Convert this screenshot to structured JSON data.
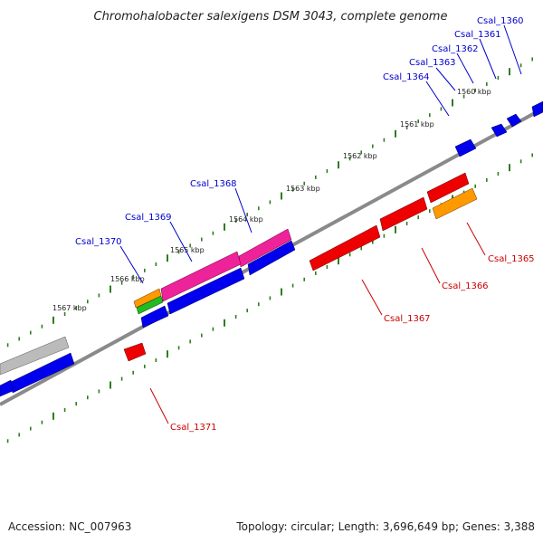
{
  "title": "Chromohalobacter salexigens DSM 3043, complete genome",
  "footer": {
    "accession": "Accession: NC_007963",
    "summary": "Topology: circular; Length: 3,696,649 bp; Genes: 3,388"
  },
  "colors": {
    "backbone": "#777777",
    "tick": "#2e7d1f",
    "forward_label": "#0000cc",
    "reverse_label": "#cc0000",
    "blue": "#0000ee",
    "red": "#ee0000",
    "magenta": "#ee2299",
    "orange": "#ff9900",
    "green": "#22bb22",
    "grey": "#bbbbbb"
  },
  "scale_labels": [
    "1560 kbp",
    "1561 kbp",
    "1562 kbp",
    "1563 kbp",
    "1564 kbp",
    "1565 kbp",
    "1566 kbp",
    "1567 kbp"
  ],
  "genes_forward": [
    "Csal_1360",
    "Csal_1361",
    "Csal_1362",
    "Csal_1363",
    "Csal_1364",
    "Csal_1368",
    "Csal_1369",
    "Csal_1370"
  ],
  "genes_reverse": [
    "Csal_1365",
    "Csal_1366",
    "Csal_1367",
    "Csal_1371"
  ]
}
